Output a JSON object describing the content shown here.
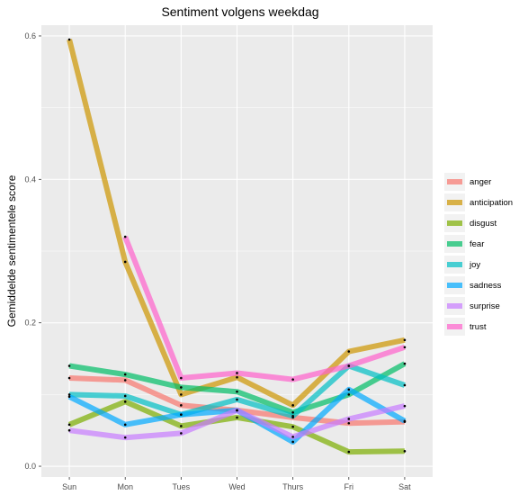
{
  "chart_data": {
    "type": "line",
    "title": "Sentiment volgens weekdag",
    "xlabel": "",
    "ylabel": "Gemiddelde sentimentele score",
    "categories": [
      "Sun",
      "Mon",
      "Tues",
      "Wed",
      "Thurs",
      "Fri",
      "Sat"
    ],
    "ylim": [
      -0.015,
      0.615
    ],
    "yticks": [
      0.0,
      0.2,
      0.4,
      0.6
    ],
    "ytick_labels": [
      "0.0",
      "0.2",
      "0.4",
      "0.6"
    ],
    "grid": true,
    "legend_position": "right",
    "series": [
      {
        "name": "anger",
        "color": "#F8766D",
        "values": [
          0.123,
          0.12,
          0.085,
          0.078,
          0.068,
          0.06,
          0.062
        ]
      },
      {
        "name": "anticipation",
        "color": "#CD9600",
        "values": [
          0.595,
          0.285,
          0.1,
          0.124,
          0.085,
          0.16,
          0.176
        ]
      },
      {
        "name": "disgust",
        "color": "#7CAE00",
        "values": [
          0.058,
          0.09,
          0.056,
          0.068,
          0.055,
          0.02,
          0.021
        ]
      },
      {
        "name": "fear",
        "color": "#00BE67",
        "values": [
          0.14,
          0.128,
          0.11,
          0.104,
          0.075,
          0.1,
          0.143
        ]
      },
      {
        "name": "joy",
        "color": "#00BFC4",
        "values": [
          0.1,
          0.098,
          0.072,
          0.093,
          0.07,
          0.14,
          0.113
        ]
      },
      {
        "name": "sadness",
        "color": "#00A9FF",
        "values": [
          0.097,
          0.058,
          0.072,
          0.078,
          0.034,
          0.107,
          0.063
        ]
      },
      {
        "name": "surprise",
        "color": "#C77CFF",
        "values": [
          0.05,
          0.04,
          0.046,
          0.078,
          0.041,
          0.066,
          0.084
        ]
      },
      {
        "name": "trust",
        "color": "#FF61CC",
        "values": [
          null,
          0.32,
          0.123,
          0.13,
          0.121,
          0.14,
          0.166
        ]
      }
    ]
  }
}
